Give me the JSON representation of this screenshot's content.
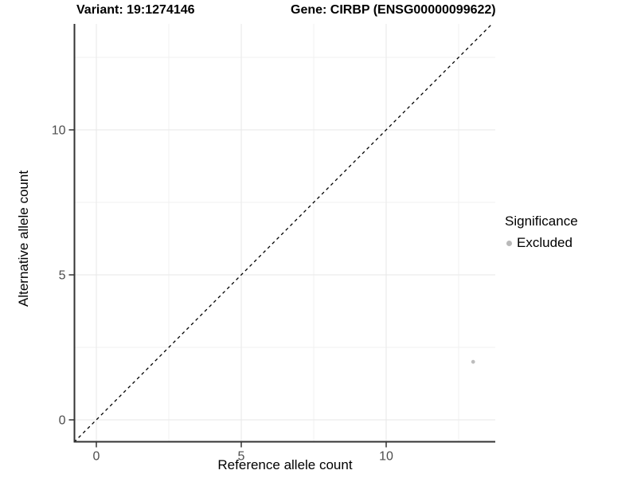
{
  "figure": {
    "titles": {
      "left": "Variant: 19:1274146",
      "right": "Gene: CIRBP (ENSG00000099622)"
    }
  },
  "chart_data": {
    "type": "scatter",
    "title_left": "Variant: 19:1274146",
    "title_right": "Gene: CIRBP (ENSG00000099622)",
    "xlabel": "Reference allele count",
    "ylabel": "Alternative allele count",
    "xlim": [
      -0.77,
      13.76
    ],
    "ylim": [
      -0.77,
      13.65
    ],
    "x_ticks": [
      0,
      5,
      10
    ],
    "y_ticks": [
      0,
      5,
      10
    ],
    "x_minor_ticks": [
      2.5,
      7.5,
      12.5
    ],
    "y_minor_ticks": [
      2.5,
      7.5,
      12.5
    ],
    "grid": "major and minor, very light gray, on white background",
    "reference_line": {
      "type": "identity y=x",
      "style": "dashed",
      "color": "#000000"
    },
    "series": [
      {
        "name": "Excluded",
        "color": "#bdbdbd",
        "points": [
          {
            "x": 13,
            "y": 2
          }
        ]
      }
    ],
    "legend": {
      "title": "Significance",
      "position": "right",
      "entries": [
        {
          "label": "Excluded",
          "color": "#b9b9b9"
        }
      ]
    }
  },
  "colors": {
    "grid_major": "#e7e7e7",
    "grid_minor": "#f1f1f1",
    "axis_line": "#333333",
    "tick_mark": "#333333",
    "tick_label": "#4d4d4d",
    "point": "#bdbdbd",
    "reference_line": "#000000"
  }
}
